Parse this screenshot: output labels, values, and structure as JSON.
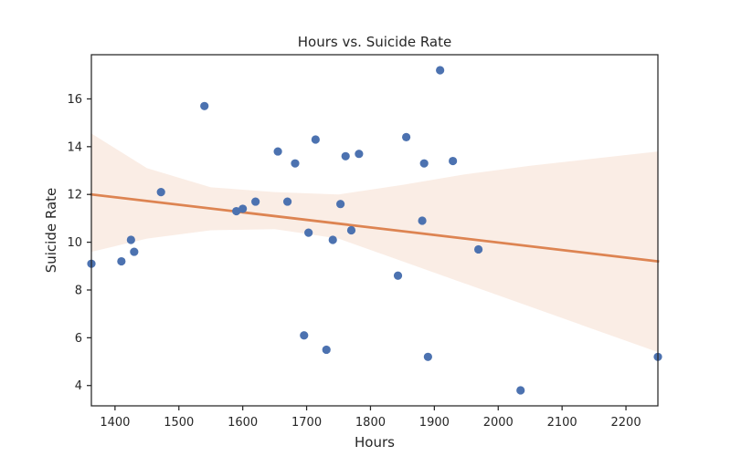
{
  "chart_data": {
    "type": "scatter",
    "title": "Hours vs. Suicide Rate",
    "xlabel": "Hours",
    "ylabel": "Suicide Rate",
    "xlim": [
      1363,
      2250
    ],
    "ylim": [
      3.15,
      17.85
    ],
    "xticks": [
      1400,
      1500,
      1600,
      1700,
      1800,
      1900,
      2000,
      2100,
      2200
    ],
    "yticks": [
      4,
      6,
      8,
      10,
      12,
      14,
      16
    ],
    "grid": false,
    "legend": "none",
    "colors": {
      "points": "#4c72b0",
      "regression_line": "#dd8452",
      "confidence_band": "#dd8452"
    },
    "series": [
      {
        "points": [
          [
            1363,
            9.1
          ],
          [
            1410,
            9.2
          ],
          [
            1425,
            10.1
          ],
          [
            1430,
            9.6
          ],
          [
            1472,
            12.1
          ],
          [
            1540,
            15.7
          ],
          [
            1590,
            11.3
          ],
          [
            1600,
            11.4
          ],
          [
            1620,
            11.7
          ],
          [
            1655,
            13.8
          ],
          [
            1670,
            11.7
          ],
          [
            1682,
            13.3
          ],
          [
            1696,
            6.1
          ],
          [
            1703,
            10.4
          ],
          [
            1714,
            14.3
          ],
          [
            1731,
            5.5
          ],
          [
            1741,
            10.1
          ],
          [
            1753,
            11.6
          ],
          [
            1761,
            13.6
          ],
          [
            1770,
            10.5
          ],
          [
            1782,
            13.7
          ],
          [
            1843,
            8.6
          ],
          [
            1856,
            14.4
          ],
          [
            1881,
            10.9
          ],
          [
            1884,
            13.3
          ],
          [
            1890,
            5.2
          ],
          [
            1909,
            17.2
          ],
          [
            1929,
            13.4
          ],
          [
            1969,
            9.7
          ],
          [
            2035,
            3.8
          ],
          [
            2250,
            5.2
          ]
        ]
      }
    ],
    "regression": {
      "x": [
        1363,
        2250
      ],
      "y": [
        12.0,
        9.2
      ]
    },
    "confidence_band": {
      "x": [
        1363,
        1450,
        1550,
        1650,
        1750,
        1850,
        1950,
        2050,
        2150,
        2250
      ],
      "lower": [
        9.6,
        10.15,
        10.5,
        10.55,
        10.15,
        9.2,
        8.25,
        7.3,
        6.35,
        5.4
      ],
      "upper": [
        14.55,
        13.1,
        12.3,
        12.1,
        12.0,
        12.4,
        12.85,
        13.2,
        13.5,
        13.8
      ]
    }
  }
}
